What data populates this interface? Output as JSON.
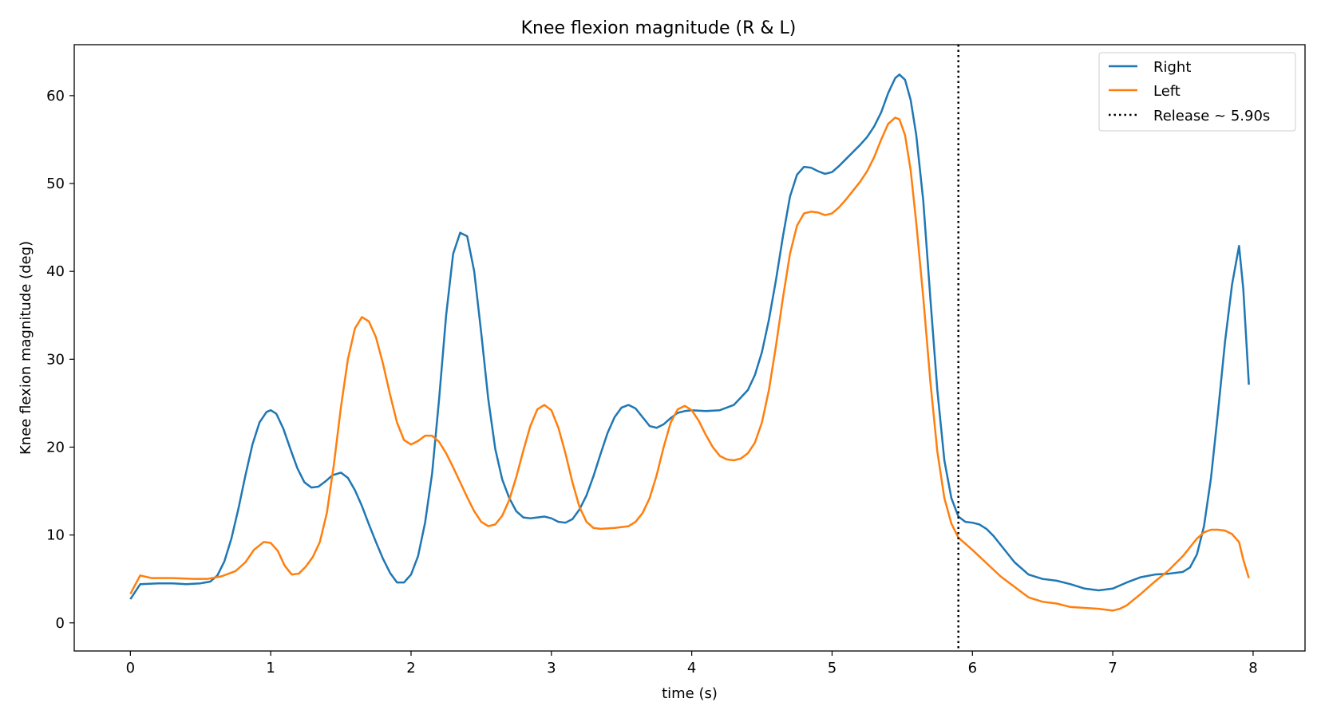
{
  "chart_data": {
    "type": "line",
    "title": "Knee flexion magnitude (R & L)",
    "xlabel": "time (s)",
    "ylabel": "Knee flexion magnitude (deg)",
    "xlim": [
      -0.4,
      8.37
    ],
    "ylim": [
      -3.2,
      65.8
    ],
    "xticks": [
      0,
      1,
      2,
      3,
      4,
      5,
      6,
      7,
      8
    ],
    "yticks": [
      0,
      10,
      20,
      30,
      40,
      50,
      60
    ],
    "grid": false,
    "legend_position": "top-right",
    "series": [
      {
        "name": "Right",
        "color": "#1f77b4",
        "points": [
          [
            0,
            2.7
          ],
          [
            0.07,
            4.4
          ],
          [
            0.2,
            4.5
          ],
          [
            0.3,
            4.5
          ],
          [
            0.4,
            4.4
          ],
          [
            0.5,
            4.5
          ],
          [
            0.57,
            4.7
          ],
          [
            0.62,
            5.4
          ],
          [
            0.67,
            7.0
          ],
          [
            0.72,
            9.6
          ],
          [
            0.77,
            13.0
          ],
          [
            0.82,
            16.8
          ],
          [
            0.87,
            20.3
          ],
          [
            0.92,
            22.8
          ],
          [
            0.97,
            24.0
          ],
          [
            1.0,
            24.2
          ],
          [
            1.04,
            23.8
          ],
          [
            1.09,
            22.1
          ],
          [
            1.14,
            19.8
          ],
          [
            1.19,
            17.6
          ],
          [
            1.24,
            16.0
          ],
          [
            1.29,
            15.4
          ],
          [
            1.34,
            15.5
          ],
          [
            1.39,
            16.1
          ],
          [
            1.44,
            16.8
          ],
          [
            1.5,
            17.1
          ],
          [
            1.55,
            16.5
          ],
          [
            1.6,
            15.1
          ],
          [
            1.65,
            13.3
          ],
          [
            1.7,
            11.2
          ],
          [
            1.75,
            9.2
          ],
          [
            1.8,
            7.3
          ],
          [
            1.85,
            5.7
          ],
          [
            1.9,
            4.6
          ],
          [
            1.95,
            4.6
          ],
          [
            2.0,
            5.5
          ],
          [
            2.05,
            7.6
          ],
          [
            2.1,
            11.4
          ],
          [
            2.15,
            17.0
          ],
          [
            2.2,
            25.5
          ],
          [
            2.25,
            35.0
          ],
          [
            2.3,
            42.0
          ],
          [
            2.35,
            44.4
          ],
          [
            2.4,
            44.0
          ],
          [
            2.45,
            40.0
          ],
          [
            2.5,
            33.0
          ],
          [
            2.55,
            25.5
          ],
          [
            2.6,
            19.8
          ],
          [
            2.65,
            16.3
          ],
          [
            2.7,
            14.2
          ],
          [
            2.75,
            12.7
          ],
          [
            2.8,
            12.0
          ],
          [
            2.85,
            11.9
          ],
          [
            2.9,
            12.0
          ],
          [
            2.95,
            12.1
          ],
          [
            3.0,
            11.9
          ],
          [
            3.05,
            11.5
          ],
          [
            3.1,
            11.4
          ],
          [
            3.15,
            11.8
          ],
          [
            3.2,
            12.9
          ],
          [
            3.25,
            14.5
          ],
          [
            3.3,
            16.7
          ],
          [
            3.35,
            19.2
          ],
          [
            3.4,
            21.6
          ],
          [
            3.45,
            23.4
          ],
          [
            3.5,
            24.5
          ],
          [
            3.55,
            24.8
          ],
          [
            3.6,
            24.4
          ],
          [
            3.65,
            23.4
          ],
          [
            3.7,
            22.4
          ],
          [
            3.75,
            22.2
          ],
          [
            3.8,
            22.6
          ],
          [
            3.85,
            23.3
          ],
          [
            3.9,
            23.9
          ],
          [
            3.95,
            24.1
          ],
          [
            4.0,
            24.2
          ],
          [
            4.1,
            24.1
          ],
          [
            4.2,
            24.2
          ],
          [
            4.3,
            24.8
          ],
          [
            4.4,
            26.5
          ],
          [
            4.45,
            28.2
          ],
          [
            4.5,
            30.8
          ],
          [
            4.55,
            34.5
          ],
          [
            4.6,
            39.0
          ],
          [
            4.65,
            44.0
          ],
          [
            4.7,
            48.5
          ],
          [
            4.75,
            51.0
          ],
          [
            4.8,
            51.9
          ],
          [
            4.85,
            51.8
          ],
          [
            4.9,
            51.4
          ],
          [
            4.95,
            51.1
          ],
          [
            5.0,
            51.3
          ],
          [
            5.05,
            52.0
          ],
          [
            5.1,
            52.8
          ],
          [
            5.15,
            53.6
          ],
          [
            5.2,
            54.4
          ],
          [
            5.25,
            55.3
          ],
          [
            5.3,
            56.5
          ],
          [
            5.35,
            58.1
          ],
          [
            5.4,
            60.3
          ],
          [
            5.45,
            62.0
          ],
          [
            5.48,
            62.4
          ],
          [
            5.52,
            61.8
          ],
          [
            5.56,
            59.5
          ],
          [
            5.6,
            55.5
          ],
          [
            5.65,
            48.0
          ],
          [
            5.7,
            37.0
          ],
          [
            5.75,
            26.5
          ],
          [
            5.8,
            18.5
          ],
          [
            5.85,
            14.2
          ],
          [
            5.9,
            12.1
          ],
          [
            5.95,
            11.5
          ],
          [
            6.0,
            11.4
          ],
          [
            6.05,
            11.2
          ],
          [
            6.1,
            10.7
          ],
          [
            6.15,
            9.9
          ],
          [
            6.2,
            8.9
          ],
          [
            6.3,
            6.9
          ],
          [
            6.4,
            5.5
          ],
          [
            6.5,
            5.0
          ],
          [
            6.6,
            4.8
          ],
          [
            6.7,
            4.4
          ],
          [
            6.8,
            3.9
          ],
          [
            6.9,
            3.7
          ],
          [
            7.0,
            3.9
          ],
          [
            7.1,
            4.6
          ],
          [
            7.2,
            5.2
          ],
          [
            7.3,
            5.5
          ],
          [
            7.4,
            5.6
          ],
          [
            7.5,
            5.8
          ],
          [
            7.55,
            6.3
          ],
          [
            7.6,
            7.8
          ],
          [
            7.65,
            11.0
          ],
          [
            7.7,
            16.5
          ],
          [
            7.75,
            24.0
          ],
          [
            7.8,
            32.0
          ],
          [
            7.85,
            38.5
          ],
          [
            7.9,
            42.9
          ],
          [
            7.93,
            38.0
          ],
          [
            7.97,
            27.1
          ]
        ]
      },
      {
        "name": "Left",
        "color": "#ff7f0e",
        "points": [
          [
            0,
            3.3
          ],
          [
            0.07,
            5.4
          ],
          [
            0.15,
            5.1
          ],
          [
            0.3,
            5.1
          ],
          [
            0.45,
            5.0
          ],
          [
            0.55,
            5.0
          ],
          [
            0.65,
            5.3
          ],
          [
            0.75,
            5.9
          ],
          [
            0.82,
            6.9
          ],
          [
            0.88,
            8.3
          ],
          [
            0.95,
            9.2
          ],
          [
            1.0,
            9.1
          ],
          [
            1.05,
            8.2
          ],
          [
            1.1,
            6.5
          ],
          [
            1.15,
            5.5
          ],
          [
            1.2,
            5.6
          ],
          [
            1.25,
            6.4
          ],
          [
            1.3,
            7.5
          ],
          [
            1.35,
            9.2
          ],
          [
            1.4,
            12.5
          ],
          [
            1.45,
            18.0
          ],
          [
            1.5,
            24.5
          ],
          [
            1.55,
            30.0
          ],
          [
            1.6,
            33.5
          ],
          [
            1.65,
            34.8
          ],
          [
            1.7,
            34.3
          ],
          [
            1.75,
            32.5
          ],
          [
            1.8,
            29.5
          ],
          [
            1.85,
            26.0
          ],
          [
            1.9,
            22.8
          ],
          [
            1.95,
            20.8
          ],
          [
            2.0,
            20.3
          ],
          [
            2.05,
            20.7
          ],
          [
            2.1,
            21.3
          ],
          [
            2.15,
            21.3
          ],
          [
            2.2,
            20.6
          ],
          [
            2.25,
            19.3
          ],
          [
            2.3,
            17.7
          ],
          [
            2.35,
            16.0
          ],
          [
            2.4,
            14.3
          ],
          [
            2.45,
            12.7
          ],
          [
            2.5,
            11.5
          ],
          [
            2.55,
            11.0
          ],
          [
            2.6,
            11.2
          ],
          [
            2.65,
            12.2
          ],
          [
            2.7,
            14.0
          ],
          [
            2.75,
            16.6
          ],
          [
            2.8,
            19.6
          ],
          [
            2.85,
            22.4
          ],
          [
            2.9,
            24.3
          ],
          [
            2.95,
            24.8
          ],
          [
            3.0,
            24.2
          ],
          [
            3.05,
            22.2
          ],
          [
            3.1,
            19.3
          ],
          [
            3.15,
            16.0
          ],
          [
            3.2,
            13.2
          ],
          [
            3.25,
            11.5
          ],
          [
            3.3,
            10.8
          ],
          [
            3.35,
            10.7
          ],
          [
            3.45,
            10.8
          ],
          [
            3.55,
            11.0
          ],
          [
            3.6,
            11.5
          ],
          [
            3.65,
            12.5
          ],
          [
            3.7,
            14.2
          ],
          [
            3.75,
            16.8
          ],
          [
            3.8,
            20.0
          ],
          [
            3.85,
            22.8
          ],
          [
            3.9,
            24.3
          ],
          [
            3.95,
            24.7
          ],
          [
            4.0,
            24.2
          ],
          [
            4.05,
            23.0
          ],
          [
            4.1,
            21.4
          ],
          [
            4.15,
            20.0
          ],
          [
            4.2,
            19.0
          ],
          [
            4.25,
            18.6
          ],
          [
            4.3,
            18.5
          ],
          [
            4.35,
            18.7
          ],
          [
            4.4,
            19.3
          ],
          [
            4.45,
            20.5
          ],
          [
            4.5,
            22.8
          ],
          [
            4.55,
            26.5
          ],
          [
            4.6,
            31.5
          ],
          [
            4.65,
            37.0
          ],
          [
            4.7,
            42.0
          ],
          [
            4.75,
            45.2
          ],
          [
            4.8,
            46.6
          ],
          [
            4.85,
            46.8
          ],
          [
            4.9,
            46.7
          ],
          [
            4.95,
            46.4
          ],
          [
            5.0,
            46.6
          ],
          [
            5.05,
            47.3
          ],
          [
            5.1,
            48.2
          ],
          [
            5.15,
            49.2
          ],
          [
            5.2,
            50.2
          ],
          [
            5.25,
            51.4
          ],
          [
            5.3,
            53.0
          ],
          [
            5.35,
            55.0
          ],
          [
            5.4,
            56.8
          ],
          [
            5.45,
            57.5
          ],
          [
            5.48,
            57.3
          ],
          [
            5.52,
            55.5
          ],
          [
            5.56,
            51.5
          ],
          [
            5.6,
            45.5
          ],
          [
            5.65,
            37.0
          ],
          [
            5.7,
            27.5
          ],
          [
            5.75,
            19.5
          ],
          [
            5.8,
            14.2
          ],
          [
            5.85,
            11.3
          ],
          [
            5.9,
            9.7
          ],
          [
            5.95,
            9.0
          ],
          [
            6.0,
            8.3
          ],
          [
            6.1,
            6.8
          ],
          [
            6.2,
            5.3
          ],
          [
            6.3,
            4.1
          ],
          [
            6.4,
            2.9
          ],
          [
            6.5,
            2.4
          ],
          [
            6.6,
            2.2
          ],
          [
            6.7,
            1.8
          ],
          [
            6.8,
            1.7
          ],
          [
            6.9,
            1.6
          ],
          [
            6.95,
            1.5
          ],
          [
            7.0,
            1.4
          ],
          [
            7.05,
            1.6
          ],
          [
            7.1,
            2.0
          ],
          [
            7.2,
            3.3
          ],
          [
            7.3,
            4.7
          ],
          [
            7.4,
            6.0
          ],
          [
            7.5,
            7.6
          ],
          [
            7.55,
            8.6
          ],
          [
            7.6,
            9.6
          ],
          [
            7.65,
            10.3
          ],
          [
            7.7,
            10.6
          ],
          [
            7.75,
            10.6
          ],
          [
            7.8,
            10.5
          ],
          [
            7.85,
            10.1
          ],
          [
            7.9,
            9.2
          ],
          [
            7.93,
            7.2
          ],
          [
            7.97,
            5.1
          ]
        ]
      }
    ],
    "vline": {
      "x": 5.9,
      "label": "Release ~ 5.90s",
      "color": "#000000",
      "style": "dotted"
    }
  }
}
